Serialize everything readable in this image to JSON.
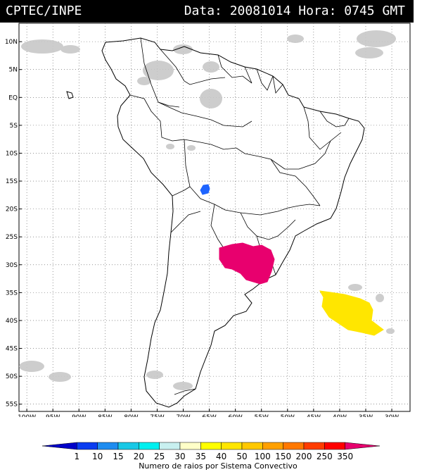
{
  "header": {
    "source": "CPTEC/INPE",
    "data_label": "Data:",
    "date": "20081014",
    "hora_label": "Hora:",
    "time": "0745 GMT"
  },
  "map": {
    "lat_labels": [
      "10N",
      "5N",
      "EQ",
      "5S",
      "10S",
      "15S",
      "20S",
      "25S",
      "30S",
      "35S",
      "40S",
      "45S",
      "50S",
      "55S"
    ],
    "lon_labels": [
      "100W",
      "95W",
      "90W",
      "85W",
      "80W",
      "75W",
      "70W",
      "65W",
      "60W",
      "55W",
      "50W",
      "45W",
      "40W",
      "35W",
      "30W"
    ],
    "lat_values": [
      10,
      5,
      0,
      -5,
      -10,
      -15,
      -20,
      -25,
      -30,
      -35,
      -40,
      -45,
      -50,
      -55
    ],
    "lon_values": [
      -100,
      -95,
      -90,
      -85,
      -80,
      -75,
      -70,
      -65,
      -60,
      -55,
      -50,
      -45,
      -40,
      -35,
      -30
    ],
    "colors": {
      "land_outline": "#000000",
      "cloud_gray": "#c8c8c8",
      "grid_dotted": "#555555",
      "system_magenta": "#e8006e",
      "system_yellow": "#ffe600",
      "system_blue": "#1e64ff"
    },
    "systems": [
      {
        "name": "system-blue",
        "color_class": "1-10"
      },
      {
        "name": "system-magenta",
        "color_class": "350"
      },
      {
        "name": "system-yellow",
        "color_class": "40-50"
      }
    ]
  },
  "scale": {
    "title": "Numero de raios por Sistema Convectivo",
    "labels": [
      "1",
      "10",
      "15",
      "20",
      "25",
      "30",
      "35",
      "40",
      "50",
      "100",
      "150",
      "200",
      "250",
      "350"
    ],
    "colors": [
      "#0000c8",
      "#0a3cf0",
      "#1e8cf0",
      "#18c8e6",
      "#00f0f0",
      "#c8f0f0",
      "#ffffc8",
      "#ffff00",
      "#ffe600",
      "#ffc800",
      "#ffa000",
      "#ff7800",
      "#ff3c00",
      "#ff0000",
      "#e6006e"
    ]
  }
}
